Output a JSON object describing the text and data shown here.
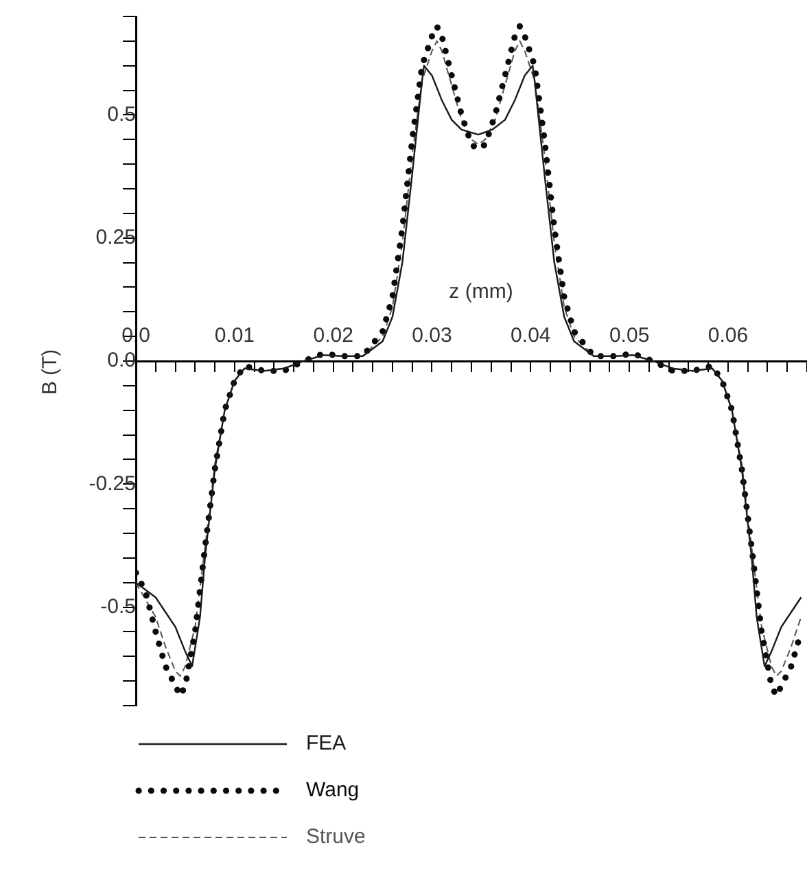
{
  "chart_data": {
    "type": "line",
    "xlabel": "z (mm)",
    "ylabel": "B (T)",
    "xlim": [
      0,
      0.068
    ],
    "ylim": [
      -0.7,
      0.7
    ],
    "xticks": [
      {
        "value": 0,
        "label": "0.0"
      },
      {
        "value": 0.002,
        "label": null
      },
      {
        "value": 0.004,
        "label": null
      },
      {
        "value": 0.006,
        "label": null
      },
      {
        "value": 0.008,
        "label": null
      },
      0.01,
      {
        "value": 0.012,
        "label": null
      },
      {
        "value": 0.014,
        "label": null
      },
      {
        "value": 0.016,
        "label": null
      },
      {
        "value": 0.018,
        "label": null
      },
      0.02,
      {
        "value": 0.022,
        "label": null
      },
      {
        "value": 0.024,
        "label": null
      },
      {
        "value": 0.026,
        "label": null
      },
      {
        "value": 0.028,
        "label": null
      },
      0.03,
      {
        "value": 0.032,
        "label": null
      },
      {
        "value": 0.034,
        "label": null
      },
      {
        "value": 0.036,
        "label": null
      },
      {
        "value": 0.038,
        "label": null
      },
      0.04,
      {
        "value": 0.042,
        "label": null
      },
      {
        "value": 0.044,
        "label": null
      },
      {
        "value": 0.046,
        "label": null
      },
      {
        "value": 0.048,
        "label": null
      },
      0.05,
      {
        "value": 0.052,
        "label": null
      },
      {
        "value": 0.054,
        "label": null
      },
      {
        "value": 0.056,
        "label": null
      },
      {
        "value": 0.058,
        "label": null
      },
      0.06,
      {
        "value": 0.062,
        "label": null
      },
      {
        "value": 0.064,
        "label": null
      },
      {
        "value": 0.066,
        "label": null
      },
      {
        "value": 0.068,
        "label": null
      }
    ],
    "yticks": [
      {
        "value": -0.7,
        "label": null
      },
      {
        "value": -0.65,
        "label": null
      },
      {
        "value": -0.6,
        "label": null
      },
      {
        "value": -0.55,
        "label": null
      },
      -0.5,
      {
        "value": -0.45,
        "label": null
      },
      {
        "value": -0.4,
        "label": null
      },
      {
        "value": -0.35,
        "label": null
      },
      {
        "value": -0.3,
        "label": null
      },
      -0.25,
      {
        "value": -0.2,
        "label": null
      },
      {
        "value": -0.15,
        "label": null
      },
      {
        "value": -0.1,
        "label": null
      },
      {
        "value": -0.05,
        "label": null
      },
      {
        "value": 0,
        "label": "0.0"
      },
      {
        "value": 0.05,
        "label": null
      },
      {
        "value": 0.1,
        "label": null
      },
      {
        "value": 0.15,
        "label": null
      },
      {
        "value": 0.2,
        "label": null
      },
      0.25,
      {
        "value": 0.3,
        "label": null
      },
      {
        "value": 0.35,
        "label": null
      },
      {
        "value": 0.4,
        "label": null
      },
      {
        "value": 0.45,
        "label": null
      },
      0.5,
      {
        "value": 0.55,
        "label": null
      },
      {
        "value": 0.6,
        "label": null
      },
      {
        "value": 0.65,
        "label": null
      },
      {
        "value": 0.7,
        "label": null
      }
    ],
    "grid": false,
    "legend": "bottom",
    "marker": "none",
    "series": [
      {
        "name": "FEA",
        "color": "#1a1a1a",
        "line_style": "solid",
        "x": [
          0,
          0.002,
          0.004,
          0.005,
          0.0057,
          0.0065,
          0.007,
          0.008,
          0.009,
          0.01,
          0.011,
          0.013,
          0.015,
          0.017,
          0.019,
          0.021,
          0.023,
          0.025,
          0.026,
          0.027,
          0.028,
          0.029,
          0.0292,
          0.03,
          0.031,
          0.032,
          0.033,
          0.0347,
          0.0361,
          0.0374,
          0.0384,
          0.0394,
          0.0402,
          0.0404,
          0.0414,
          0.0424,
          0.0434,
          0.0444,
          0.0464,
          0.0484,
          0.0504,
          0.0524,
          0.0544,
          0.0564,
          0.0584,
          0.0594,
          0.0604,
          0.0614,
          0.0624,
          0.0629,
          0.0637,
          0.0644,
          0.0654,
          0.0674
        ],
        "values": [
          -0.45,
          -0.48,
          -0.54,
          -0.59,
          -0.62,
          -0.52,
          -0.4,
          -0.22,
          -0.1,
          -0.04,
          -0.015,
          -0.02,
          -0.015,
          0,
          0.012,
          0.01,
          0.01,
          0.04,
          0.09,
          0.2,
          0.38,
          0.57,
          0.6,
          0.58,
          0.53,
          0.49,
          0.47,
          0.46,
          0.47,
          0.49,
          0.53,
          0.58,
          0.6,
          0.57,
          0.38,
          0.2,
          0.09,
          0.04,
          0.01,
          0.01,
          0.012,
          0,
          -0.015,
          -0.02,
          -0.015,
          -0.04,
          -0.1,
          -0.22,
          -0.4,
          -0.52,
          -0.62,
          -0.59,
          -0.54,
          -0.48
        ]
      },
      {
        "name": "Wang",
        "color": "#0a0a0a",
        "line_style": "dotted",
        "x": [
          0,
          0.001,
          0.002,
          0.003,
          0.004,
          0.0045,
          0.005,
          0.006,
          0.007,
          0.008,
          0.009,
          0.01,
          0.011,
          0.013,
          0.015,
          0.017,
          0.019,
          0.021,
          0.023,
          0.025,
          0.026,
          0.027,
          0.028,
          0.029,
          0.03,
          0.0305,
          0.031,
          0.032,
          0.033,
          0.034,
          0.0347,
          0.0354,
          0.0364,
          0.0374,
          0.0384,
          0.0389,
          0.0394,
          0.0404,
          0.0414,
          0.0424,
          0.0434,
          0.0444,
          0.0464,
          0.0484,
          0.0504,
          0.0524,
          0.0544,
          0.0564,
          0.0584,
          0.0594,
          0.0604,
          0.0614,
          0.0624,
          0.0634,
          0.0644,
          0.0649,
          0.0654,
          0.0664,
          0.0674
        ],
        "values": [
          -0.43,
          -0.47,
          -0.55,
          -0.62,
          -0.66,
          -0.68,
          -0.66,
          -0.55,
          -0.38,
          -0.22,
          -0.1,
          -0.04,
          -0.01,
          -0.02,
          -0.02,
          0,
          0.015,
          0.01,
          0.01,
          0.06,
          0.13,
          0.27,
          0.45,
          0.6,
          0.66,
          0.68,
          0.66,
          0.58,
          0.5,
          0.44,
          0.43,
          0.44,
          0.5,
          0.58,
          0.66,
          0.68,
          0.66,
          0.6,
          0.45,
          0.27,
          0.13,
          0.06,
          0.01,
          0.01,
          0.015,
          0,
          -0.02,
          -0.02,
          -0.01,
          -0.04,
          -0.1,
          -0.22,
          -0.38,
          -0.55,
          -0.66,
          -0.68,
          -0.66,
          -0.62,
          -0.55
        ]
      },
      {
        "name": "Struve",
        "color": "#555555",
        "line_style": "dashed",
        "x": [
          0,
          0.002,
          0.003,
          0.004,
          0.0045,
          0.005,
          0.006,
          0.007,
          0.008,
          0.009,
          0.01,
          0.011,
          0.013,
          0.015,
          0.017,
          0.019,
          0.021,
          0.023,
          0.025,
          0.026,
          0.027,
          0.028,
          0.029,
          0.03,
          0.0305,
          0.031,
          0.032,
          0.033,
          0.034,
          0.0347,
          0.0354,
          0.0364,
          0.0374,
          0.0384,
          0.0389,
          0.0394,
          0.0404,
          0.0414,
          0.0424,
          0.0434,
          0.0444,
          0.0464,
          0.0484,
          0.0504,
          0.0524,
          0.0544,
          0.0564,
          0.0584,
          0.0594,
          0.0604,
          0.0614,
          0.0624,
          0.0634,
          0.0644,
          0.0649,
          0.0654,
          0.0664,
          0.0674
        ],
        "values": [
          -0.45,
          -0.52,
          -0.58,
          -0.63,
          -0.64,
          -0.62,
          -0.54,
          -0.38,
          -0.21,
          -0.1,
          -0.04,
          -0.015,
          -0.02,
          -0.015,
          0,
          0.012,
          0.01,
          0.01,
          0.05,
          0.11,
          0.24,
          0.42,
          0.57,
          0.63,
          0.65,
          0.63,
          0.56,
          0.49,
          0.45,
          0.44,
          0.45,
          0.49,
          0.56,
          0.63,
          0.65,
          0.63,
          0.57,
          0.42,
          0.24,
          0.11,
          0.05,
          0.01,
          0.01,
          0.012,
          0,
          -0.015,
          -0.02,
          -0.015,
          -0.04,
          -0.1,
          -0.21,
          -0.38,
          -0.54,
          -0.62,
          -0.64,
          -0.63,
          -0.58,
          -0.52
        ]
      }
    ]
  }
}
